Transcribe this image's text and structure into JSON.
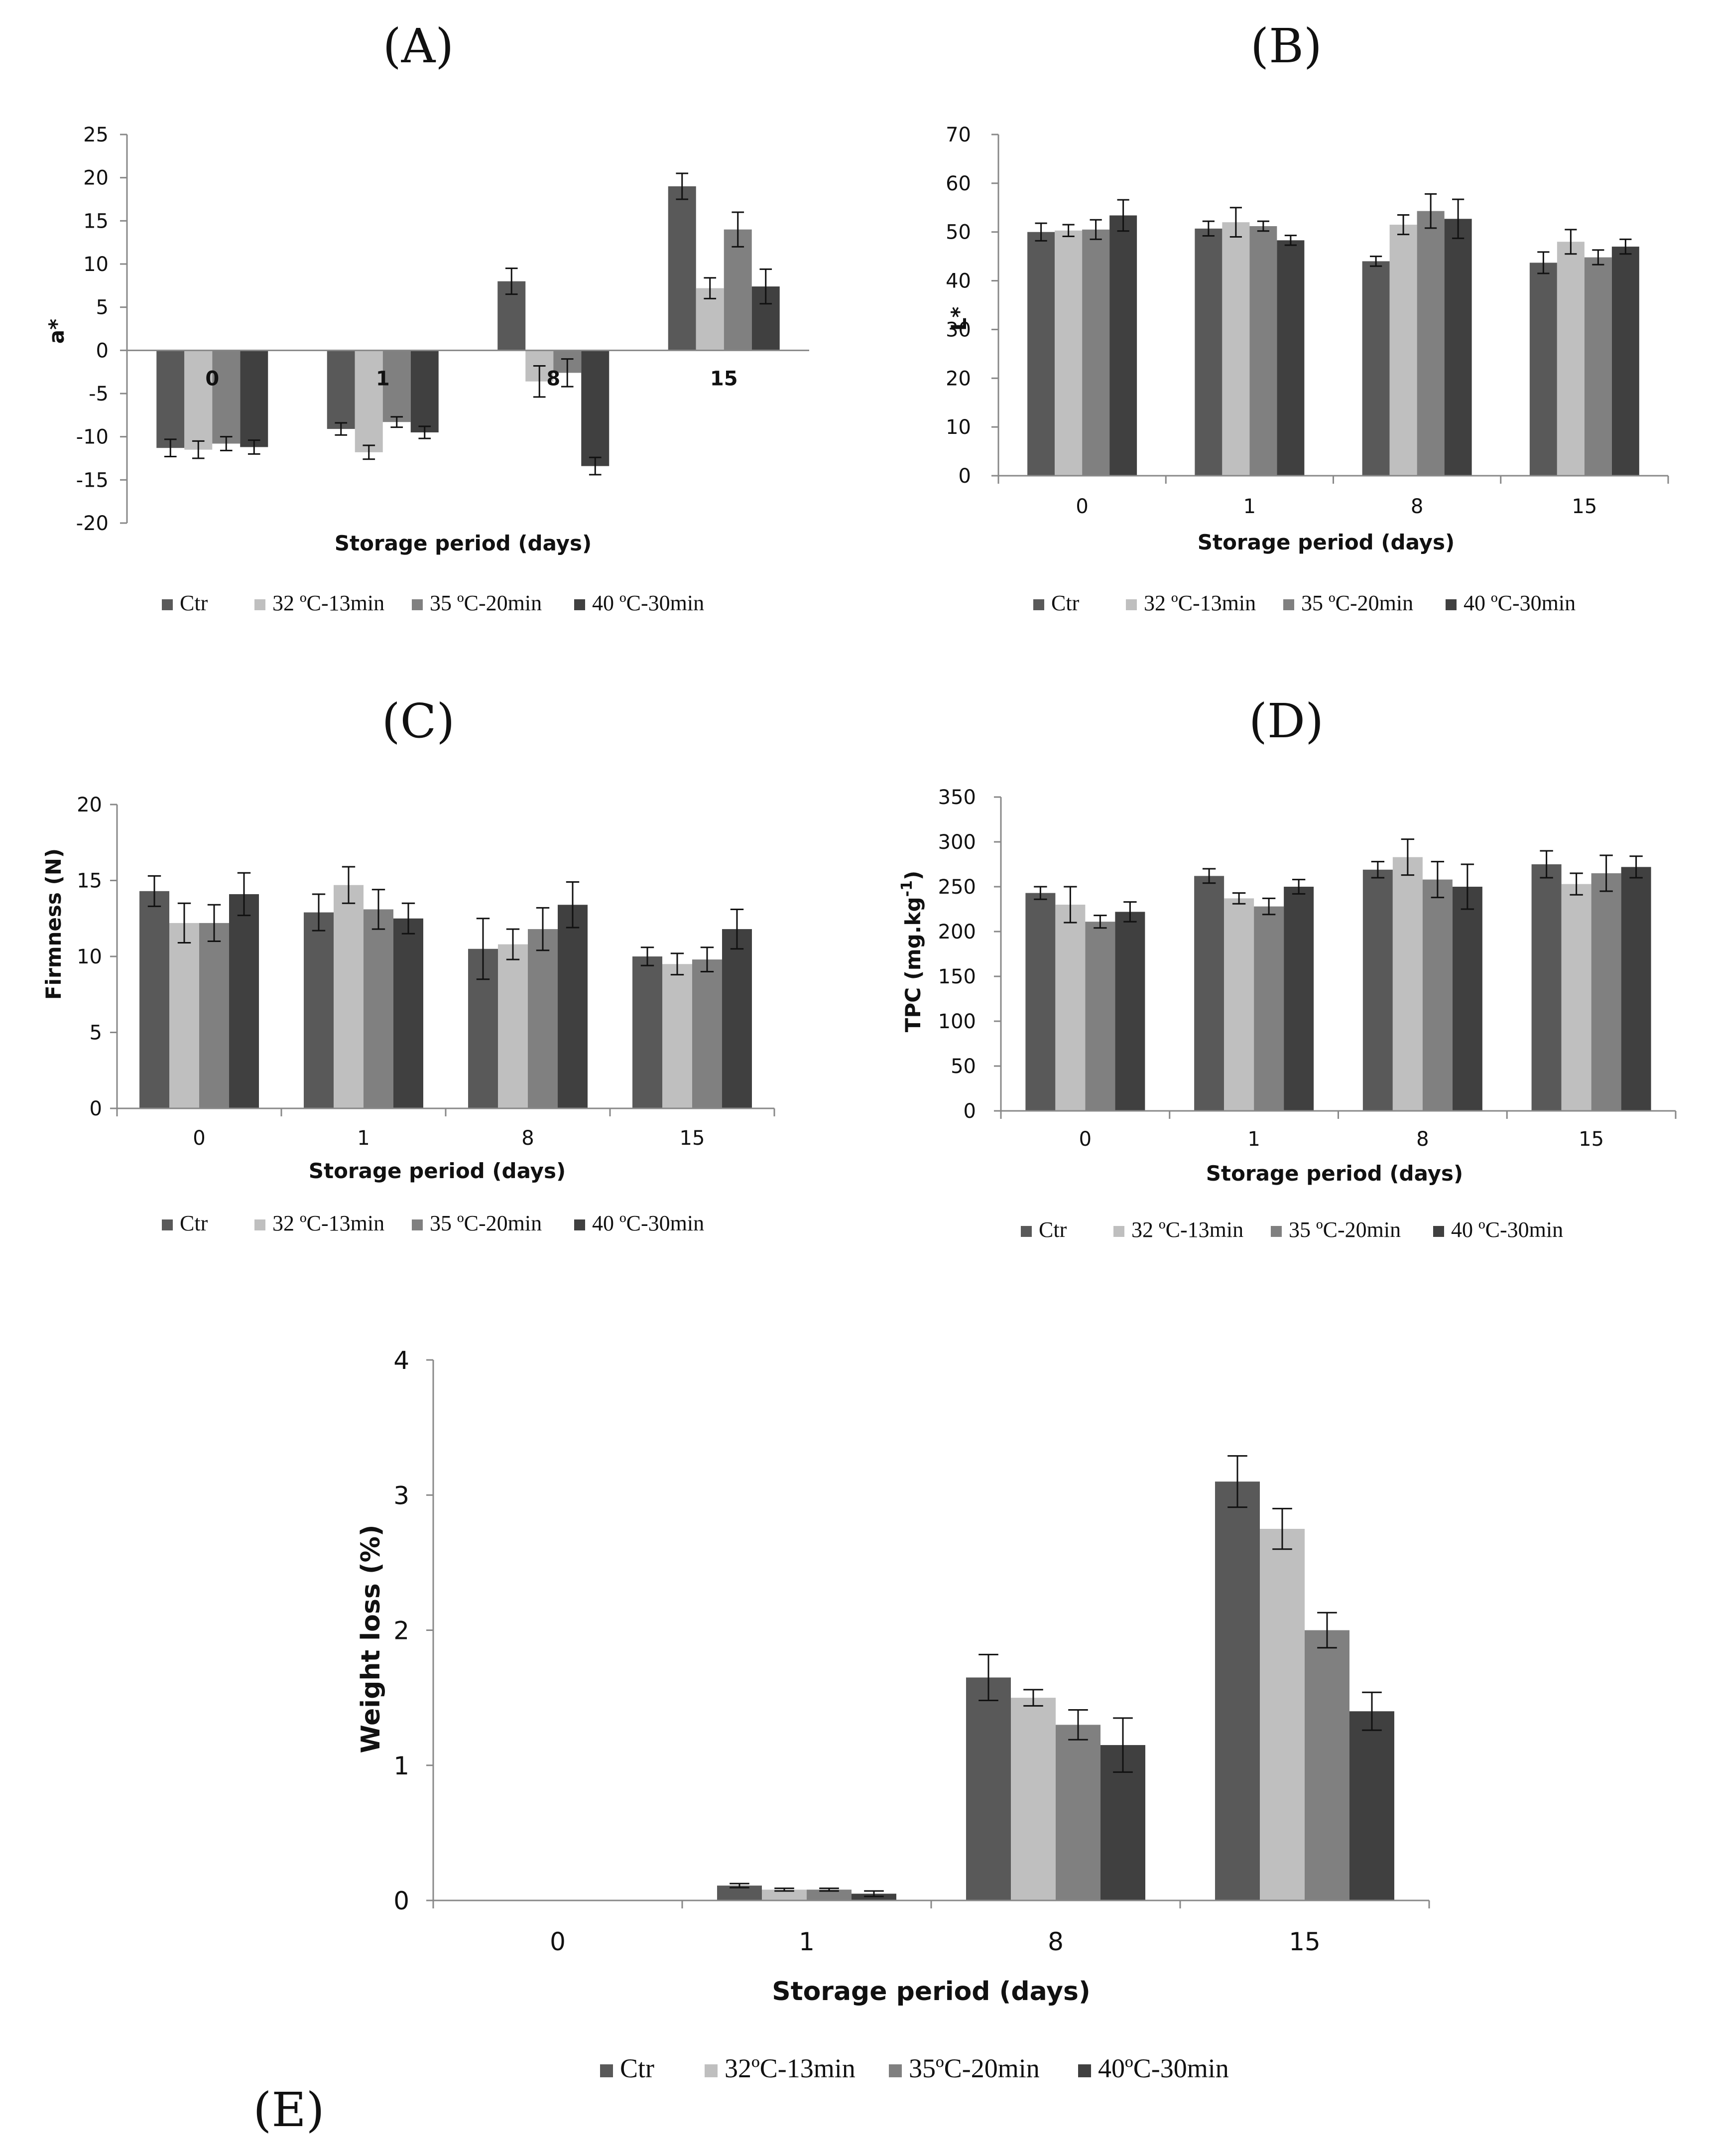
{
  "chart_data": [
    {
      "id": "A",
      "panel_label": "(A)",
      "type": "bar",
      "categories": [
        "0",
        "1",
        "8",
        "15"
      ],
      "ylabel": "a*",
      "xlabel": "Storage period (days)",
      "ylim": [
        -20,
        25
      ],
      "yticks": [
        25,
        20,
        15,
        10,
        5,
        0,
        -5,
        -10,
        -15,
        -20
      ],
      "legend": [
        "Ctr",
        "32 ºC-13min",
        "35 ºC-20min",
        "40 ºC-30min"
      ],
      "series": [
        {
          "name": "Ctr",
          "values": [
            -11.3,
            -9.1,
            8.0,
            19.0
          ],
          "errors": [
            1.0,
            0.7,
            1.5,
            1.5
          ]
        },
        {
          "name": "32 ºC-13min",
          "values": [
            -11.5,
            -11.8,
            -3.6,
            7.2
          ],
          "errors": [
            1.0,
            0.8,
            1.8,
            1.2
          ]
        },
        {
          "name": "35 ºC-20min",
          "values": [
            -10.8,
            -8.3,
            -2.6,
            14.0
          ],
          "errors": [
            0.8,
            0.6,
            1.6,
            2.0
          ]
        },
        {
          "name": "40 ºC-30min",
          "values": [
            -11.2,
            -9.5,
            -13.4,
            7.4
          ],
          "errors": [
            0.8,
            0.7,
            1.0,
            2.0
          ]
        }
      ]
    },
    {
      "id": "B",
      "panel_label": "(B)",
      "type": "bar",
      "categories": [
        "0",
        "1",
        "8",
        "15"
      ],
      "ylabel": "L*",
      "xlabel": "Storage period (days)",
      "ylim": [
        0,
        70
      ],
      "yticks": [
        70,
        60,
        50,
        40,
        30,
        20,
        10,
        0
      ],
      "legend": [
        "Ctr",
        "32 ºC-13min",
        "35 ºC-20min",
        "40 ºC-30min"
      ],
      "series": [
        {
          "name": "Ctr",
          "values": [
            50.0,
            50.7,
            44.0,
            43.7
          ],
          "errors": [
            1.8,
            1.5,
            1.0,
            2.2
          ]
        },
        {
          "name": "32 ºC-13min",
          "values": [
            50.3,
            52.0,
            51.5,
            48.0
          ],
          "errors": [
            1.2,
            3.0,
            2.0,
            2.5
          ]
        },
        {
          "name": "35 ºC-20min",
          "values": [
            50.5,
            51.2,
            54.3,
            44.8
          ],
          "errors": [
            2.0,
            1.0,
            3.5,
            1.5
          ]
        },
        {
          "name": "40 ºC-30min",
          "values": [
            53.4,
            48.3,
            52.7,
            47.0
          ],
          "errors": [
            3.2,
            1.0,
            4.0,
            1.5
          ]
        }
      ]
    },
    {
      "id": "C",
      "panel_label": "(C)",
      "type": "bar",
      "categories": [
        "0",
        "1",
        "8",
        "15"
      ],
      "ylabel": "Firmness (N)",
      "xlabel": "Storage period (days)",
      "ylim": [
        0,
        20
      ],
      "yticks": [
        20,
        15,
        10,
        5,
        0
      ],
      "legend": [
        "Ctr",
        "32 ºC-13min",
        "35 ºC-20min",
        "40 ºC-30min"
      ],
      "series": [
        {
          "name": "Ctr",
          "values": [
            14.3,
            12.9,
            10.5,
            10.0
          ],
          "errors": [
            1.0,
            1.2,
            2.0,
            0.6
          ]
        },
        {
          "name": "32 ºC-13min",
          "values": [
            12.2,
            14.7,
            10.8,
            9.5
          ],
          "errors": [
            1.3,
            1.2,
            1.0,
            0.7
          ]
        },
        {
          "name": "35 ºC-20min",
          "values": [
            12.2,
            13.1,
            11.8,
            9.8
          ],
          "errors": [
            1.2,
            1.3,
            1.4,
            0.8
          ]
        },
        {
          "name": "40 ºC-30min",
          "values": [
            14.1,
            12.5,
            13.4,
            11.8
          ],
          "errors": [
            1.4,
            1.0,
            1.5,
            1.3
          ]
        }
      ]
    },
    {
      "id": "D",
      "panel_label": "(D)",
      "type": "bar",
      "categories": [
        "0",
        "1",
        "8",
        "15"
      ],
      "ylabel": "TPC (mg.kg-1)",
      "ylabel_main": "TPC (mg.kg",
      "ylabel_sup": "-1",
      "ylabel_end": ")",
      "xlabel": "Storage period (days)",
      "ylim": [
        0,
        350
      ],
      "yticks": [
        350,
        300,
        250,
        200,
        150,
        100,
        50,
        0
      ],
      "legend": [
        "Ctr",
        "32 ºC-13min",
        "35 ºC-20min",
        "40 ºC-30min"
      ],
      "series": [
        {
          "name": "Ctr",
          "values": [
            243,
            262,
            269,
            275
          ],
          "errors": [
            7,
            8,
            9,
            15
          ]
        },
        {
          "name": "32 ºC-13min",
          "values": [
            230,
            237,
            283,
            253
          ],
          "errors": [
            20,
            6,
            20,
            12
          ]
        },
        {
          "name": "35 ºC-20min",
          "values": [
            211,
            228,
            258,
            265
          ],
          "errors": [
            7,
            9,
            20,
            20
          ]
        },
        {
          "name": "40 ºC-30min",
          "values": [
            222,
            250,
            250,
            272
          ],
          "errors": [
            11,
            8,
            25,
            12
          ]
        }
      ]
    },
    {
      "id": "E",
      "panel_label": "(E)",
      "type": "bar",
      "categories": [
        "0",
        "1",
        "8",
        "15"
      ],
      "ylabel": "Weight loss (%)",
      "xlabel": "Storage period (days)",
      "ylim": [
        0,
        4
      ],
      "yticks": [
        4,
        3,
        2,
        1,
        0
      ],
      "legend": [
        "Ctr",
        "32ºC-13min",
        "35ºC-20min",
        "40ºC-30min"
      ],
      "series": [
        {
          "name": "Ctr",
          "values": [
            0,
            0.11,
            1.65,
            3.1
          ],
          "errors": [
            0,
            0.015,
            0.17,
            0.19
          ]
        },
        {
          "name": "32ºC-13min",
          "values": [
            0,
            0.08,
            1.5,
            2.75
          ],
          "errors": [
            0,
            0.01,
            0.06,
            0.15
          ]
        },
        {
          "name": "35ºC-20min",
          "values": [
            0,
            0.08,
            1.3,
            2.0
          ],
          "errors": [
            0,
            0.01,
            0.11,
            0.13
          ]
        },
        {
          "name": "40ºC-30min",
          "values": [
            0,
            0.05,
            1.15,
            1.4
          ],
          "errors": [
            0,
            0.02,
            0.2,
            0.14
          ]
        }
      ]
    }
  ],
  "colors": {
    "Ctr": "#595959",
    "32": "#bfbfbf",
    "35": "#808080",
    "40": "#404040",
    "axis": "#888888",
    "text": "#111111"
  }
}
